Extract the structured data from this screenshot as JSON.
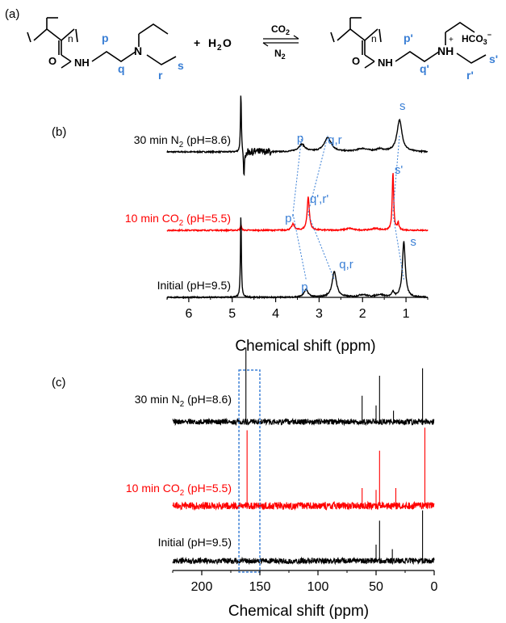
{
  "panel_labels": {
    "a": "(a)",
    "b": "(b)",
    "c": "(c)"
  },
  "scheme": {
    "left_subscript": "n",
    "nh": "NH",
    "n": "N",
    "o": "O",
    "left_labels": {
      "p": "p",
      "q": "q",
      "r": "r",
      "s": "s"
    },
    "plus": "+",
    "water_h": "H",
    "water_2": "2",
    "water_o": "O",
    "arrow_top_main": "CO",
    "arrow_top_sub": "2",
    "arrow_bottom_main": "N",
    "arrow_bottom_sub": "2",
    "right_subscript": "n",
    "nh_plus": "NH",
    "plus_charge": "+",
    "bicarb_main": "HCO",
    "bicarb_sub": "3",
    "bicarb_charge": "−",
    "right_labels": {
      "p": "p'",
      "q": "q'",
      "r": "r'",
      "s": "s'"
    }
  },
  "colors": {
    "black_trace": "#000000",
    "red_trace": "#ff0000",
    "annotation": "#3a7fd5",
    "box": "#3a7fd5"
  },
  "chart_data": [
    {
      "type": "line",
      "panel": "(b)",
      "title": "",
      "xlabel": "Chemical shift (ppm)",
      "x_ticks": [
        "6",
        "5",
        "4",
        "3",
        "2",
        "1"
      ],
      "xlim": [
        6.5,
        0.5
      ],
      "x_reversed": true,
      "y_axis": "none",
      "series": [
        {
          "name_main": "30 min N",
          "name_sub": "2",
          "name_rest": " (pH=8.6)",
          "color": "#000000",
          "peaks": [
            {
              "x": 4.8,
              "h": 1.0,
              "w": 0.012
            },
            {
              "x": 4.73,
              "h": -0.45,
              "w": 0.012
            },
            {
              "x": 3.4,
              "h": 0.12,
              "w": 0.09
            },
            {
              "x": 2.8,
              "h": 0.23,
              "w": 0.1
            },
            {
              "x": 2.0,
              "h": 0.05,
              "w": 0.15
            },
            {
              "x": 1.6,
              "h": 0.04,
              "w": 0.1
            },
            {
              "x": 1.15,
              "h": 0.52,
              "w": 0.07
            }
          ]
        },
        {
          "name_main": "10 min CO",
          "name_sub": "2",
          "name_rest": " (pH=5.5)",
          "color": "#ff0000",
          "peaks": [
            {
              "x": 4.8,
              "h": 0.1,
              "w": 0.015
            },
            {
              "x": 3.6,
              "h": 0.1,
              "w": 0.04
            },
            {
              "x": 3.25,
              "h": 0.55,
              "w": 0.03
            },
            {
              "x": 2.3,
              "h": 0.03,
              "w": 0.1
            },
            {
              "x": 1.7,
              "h": 0.03,
              "w": 0.1
            },
            {
              "x": 1.3,
              "h": 0.95,
              "w": 0.02
            },
            {
              "x": 1.18,
              "h": 0.12,
              "w": 0.02
            }
          ]
        },
        {
          "name_main": "Initial (pH=9.5)",
          "name_sub": "",
          "name_rest": "",
          "color": "#000000",
          "peaks": [
            {
              "x": 4.8,
              "h": 1.4,
              "w": 0.012
            },
            {
              "x": 3.3,
              "h": 0.12,
              "w": 0.06
            },
            {
              "x": 2.65,
              "h": 0.42,
              "w": 0.06
            },
            {
              "x": 2.0,
              "h": 0.04,
              "w": 0.12
            },
            {
              "x": 1.6,
              "h": 0.04,
              "w": 0.12
            },
            {
              "x": 1.3,
              "h": 0.08,
              "w": 0.03
            },
            {
              "x": 1.05,
              "h": 0.92,
              "w": 0.04
            }
          ]
        }
      ],
      "annotations": [
        {
          "text": "p",
          "series": 0,
          "x": 3.4
        },
        {
          "text": "q,r",
          "series": 0,
          "x": 2.8
        },
        {
          "text": "s",
          "series": 0,
          "x": 1.15
        },
        {
          "text": "p'",
          "series": 1,
          "x": 3.6
        },
        {
          "text": "q',r'",
          "series": 1,
          "x": 3.25
        },
        {
          "text": "s'",
          "series": 1,
          "x": 1.3
        },
        {
          "text": "p",
          "series": 2,
          "x": 3.3
        },
        {
          "text": "q,r",
          "series": 2,
          "x": 2.65
        },
        {
          "text": "s",
          "series": 2,
          "x": 1.05
        }
      ],
      "guide_lines": [
        {
          "from_series": 0,
          "to_series": 1,
          "x_from": 3.4,
          "x_to": 3.6
        },
        {
          "from_series": 1,
          "to_series": 2,
          "x_from": 3.6,
          "x_to": 3.3
        },
        {
          "from_series": 0,
          "to_series": 1,
          "x_from": 2.8,
          "x_to": 3.25
        },
        {
          "from_series": 1,
          "to_series": 2,
          "x_from": 3.25,
          "x_to": 2.65
        },
        {
          "from_series": 0,
          "to_series": 1,
          "x_from": 1.15,
          "x_to": 1.3
        },
        {
          "from_series": 1,
          "to_series": 2,
          "x_from": 1.3,
          "x_to": 1.05
        }
      ]
    },
    {
      "type": "line",
      "panel": "(c)",
      "title": "",
      "xlabel": "Chemical shift (ppm)",
      "x_ticks": [
        "200",
        "150",
        "100",
        "50",
        "0"
      ],
      "xlim": [
        225,
        0
      ],
      "x_reversed": true,
      "y_axis": "none",
      "highlight_box_ppm": [
        168,
        150
      ],
      "series": [
        {
          "name_main": "30 min N",
          "name_sub": "2",
          "name_rest": " (pH=8.6)",
          "color": "#000000",
          "peaks": [
            {
              "x": 162,
              "h": 1.0
            },
            {
              "x": 62,
              "h": 0.35
            },
            {
              "x": 50,
              "h": 0.22
            },
            {
              "x": 47,
              "h": 0.62
            },
            {
              "x": 35,
              "h": 0.15
            },
            {
              "x": 10,
              "h": 0.72
            }
          ]
        },
        {
          "name_main": "10 min CO",
          "name_sub": "2",
          "name_rest": " (pH=5.5)",
          "color": "#ff0000",
          "peaks": [
            {
              "x": 161,
              "h": 0.85
            },
            {
              "x": 62,
              "h": 0.2
            },
            {
              "x": 50,
              "h": 0.18
            },
            {
              "x": 47,
              "h": 0.62
            },
            {
              "x": 33,
              "h": 0.2
            },
            {
              "x": 8,
              "h": 0.88
            }
          ]
        },
        {
          "name_main": "Initial (pH=9.5)",
          "name_sub": "",
          "name_rest": "",
          "color": "#000000",
          "peaks": [
            {
              "x": 50,
              "h": 0.25
            },
            {
              "x": 47,
              "h": 0.62
            },
            {
              "x": 36,
              "h": 0.18
            },
            {
              "x": 10,
              "h": 0.78
            }
          ]
        }
      ]
    }
  ]
}
